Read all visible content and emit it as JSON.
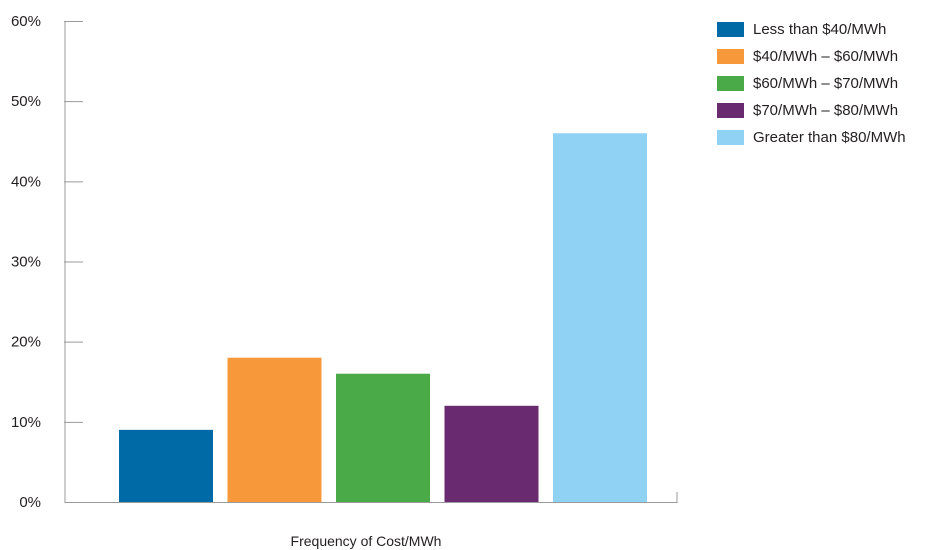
{
  "chart_data": {
    "type": "bar",
    "title": "",
    "xlabel": "Frequency of Cost/MWh",
    "ylabel": "",
    "ylim": [
      0,
      60
    ],
    "y_tick_values": [
      0,
      10,
      20,
      30,
      40,
      50,
      60
    ],
    "y_tick_labels": [
      "0%",
      "10%",
      "20%",
      "30%",
      "40%",
      "50%",
      "60%"
    ],
    "grid": false,
    "legend_position": "top-right",
    "categories": [
      "Less than $40/MWh",
      "$40/MWh – $60/MWh",
      "$60/MWh – $70/MWh",
      "$70/MWh – $80/MWh",
      "Greater than $80/MWh"
    ],
    "values": [
      9,
      18,
      16,
      12,
      46
    ],
    "colors": [
      "#006aa6",
      "#f7993a",
      "#4aaa48",
      "#692a70",
      "#8fd2f3"
    ],
    "value_unit": "%"
  }
}
